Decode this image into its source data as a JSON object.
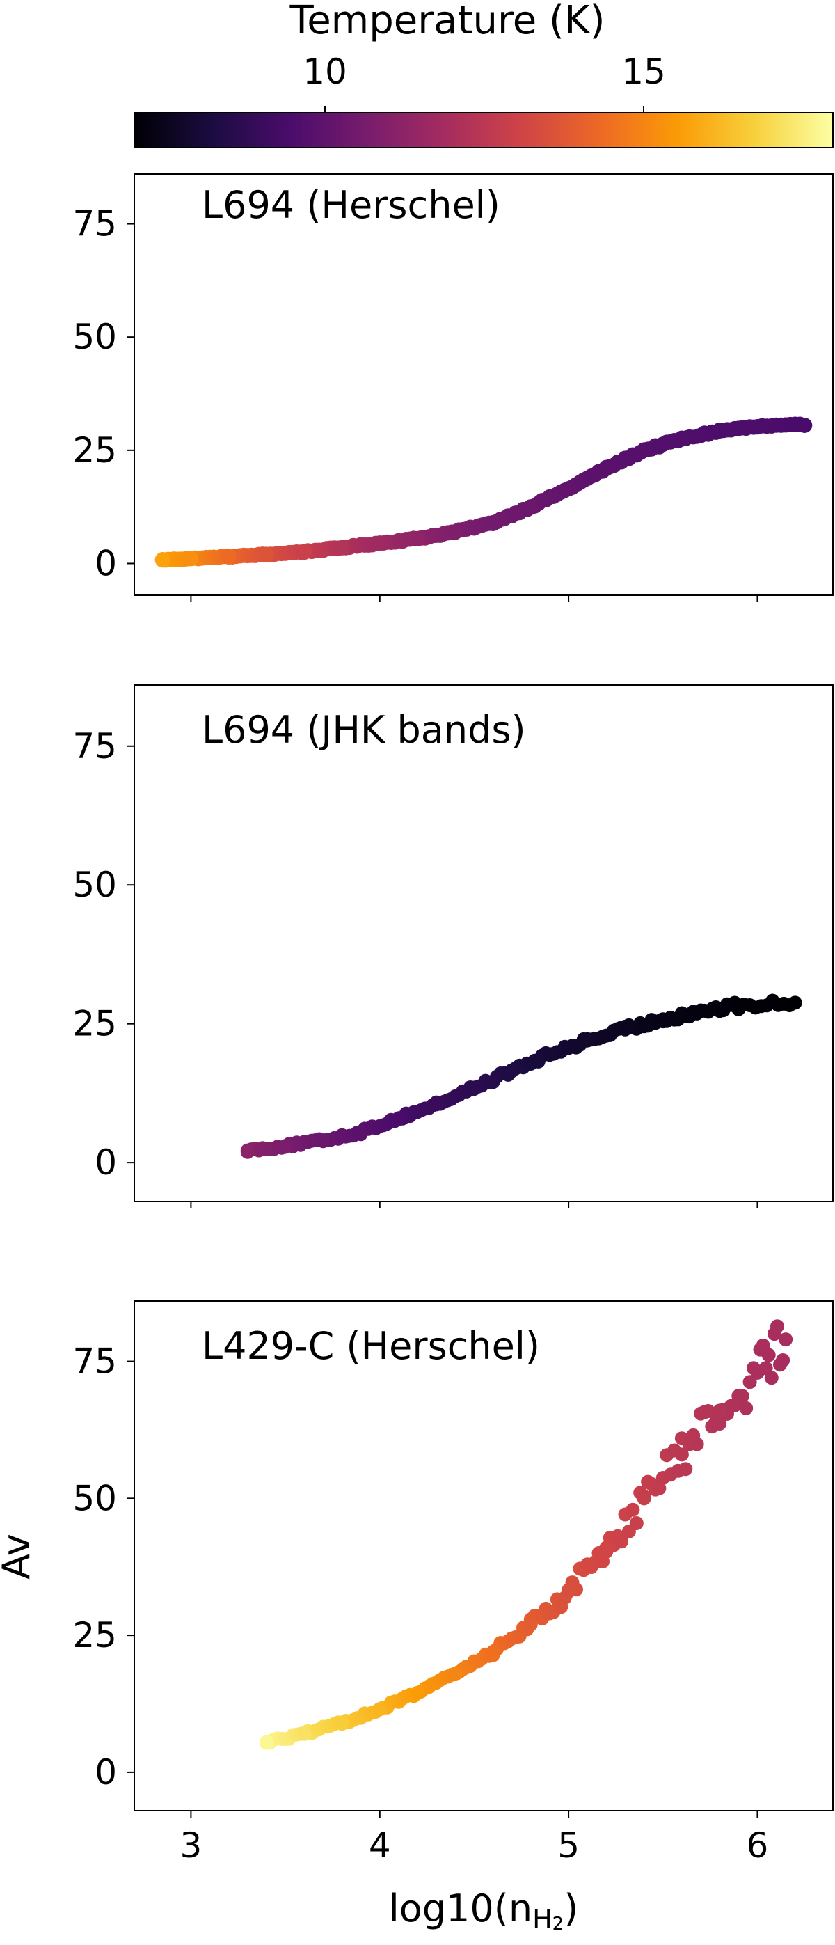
{
  "chart_data": {
    "type": "scatter",
    "colormap": "inferno",
    "colorbar": {
      "label": "Temperature (K)",
      "range": [
        7,
        17
      ],
      "ticks": [
        10,
        15
      ],
      "tick_labels": [
        "10",
        "15"
      ],
      "placement": "top",
      "stops": [
        "#000004",
        "#1b0c41",
        "#4a0c6b",
        "#781c6d",
        "#a52c60",
        "#cf4446",
        "#ed6925",
        "#fb9b06",
        "#f7d13d",
        "#fcffa4"
      ]
    },
    "x_axis": {
      "label": "log10(n",
      "label_subscript": "H",
      "label_subsubscript": "2",
      "label_close": ")",
      "range": [
        2.7,
        6.4
      ],
      "ticks": [
        3,
        4,
        5,
        6
      ],
      "tick_labels": [
        "3",
        "4",
        "5",
        "6"
      ],
      "shared": true
    },
    "y_axis": {
      "label": "Av",
      "range": [
        -7,
        86
      ],
      "ticks": [
        0,
        25,
        50,
        75
      ],
      "tick_labels": [
        "0",
        "25",
        "50",
        "75"
      ]
    },
    "panels": [
      {
        "label": "L694 (Herschel)",
        "points": [
          {
            "x": 2.85,
            "y": 0.8,
            "t": 14.9
          },
          {
            "x": 3.0,
            "y": 1.1,
            "t": 14.5
          },
          {
            "x": 3.2,
            "y": 1.5,
            "t": 13.7
          },
          {
            "x": 3.4,
            "y": 2.0,
            "t": 13.0
          },
          {
            "x": 3.6,
            "y": 2.6,
            "t": 12.4
          },
          {
            "x": 3.8,
            "y": 3.5,
            "t": 11.8
          },
          {
            "x": 4.0,
            "y": 4.5,
            "t": 11.3
          },
          {
            "x": 4.2,
            "y": 5.5,
            "t": 10.9
          },
          {
            "x": 4.4,
            "y": 7.0,
            "t": 10.5
          },
          {
            "x": 4.6,
            "y": 9.0,
            "t": 10.2
          },
          {
            "x": 4.8,
            "y": 12.5,
            "t": 10.0
          },
          {
            "x": 5.0,
            "y": 16.5,
            "t": 9.8
          },
          {
            "x": 5.2,
            "y": 21.0,
            "t": 9.6
          },
          {
            "x": 5.4,
            "y": 25.0,
            "t": 9.5
          },
          {
            "x": 5.6,
            "y": 27.5,
            "t": 9.4
          },
          {
            "x": 5.8,
            "y": 29.3,
            "t": 9.3
          },
          {
            "x": 6.0,
            "y": 30.2,
            "t": 9.3
          },
          {
            "x": 6.25,
            "y": 30.5,
            "t": 9.2
          }
        ]
      },
      {
        "label": "L694 (JHK bands)",
        "points": [
          {
            "x": 3.3,
            "y": 2.2,
            "t": 10.8
          },
          {
            "x": 3.5,
            "y": 3.0,
            "t": 10.4
          },
          {
            "x": 3.7,
            "y": 4.0,
            "t": 10.0
          },
          {
            "x": 3.9,
            "y": 5.5,
            "t": 9.6
          },
          {
            "x": 4.1,
            "y": 8.0,
            "t": 9.2
          },
          {
            "x": 4.3,
            "y": 10.5,
            "t": 8.8
          },
          {
            "x": 4.5,
            "y": 13.5,
            "t": 8.5
          },
          {
            "x": 4.7,
            "y": 16.5,
            "t": 8.2
          },
          {
            "x": 4.9,
            "y": 19.5,
            "t": 7.9
          },
          {
            "x": 5.1,
            "y": 22.0,
            "t": 7.7
          },
          {
            "x": 5.3,
            "y": 24.0,
            "t": 7.5
          },
          {
            "x": 5.5,
            "y": 25.8,
            "t": 7.3
          },
          {
            "x": 5.7,
            "y": 27.3,
            "t": 7.2
          },
          {
            "x": 5.9,
            "y": 28.2,
            "t": 7.1
          },
          {
            "x": 6.2,
            "y": 28.8,
            "t": 7.0
          }
        ]
      },
      {
        "label": "L429-C (Herschel)",
        "points": [
          {
            "x": 3.4,
            "y": 5.5,
            "t": 16.8
          },
          {
            "x": 3.6,
            "y": 7.0,
            "t": 16.3
          },
          {
            "x": 3.8,
            "y": 9.0,
            "t": 15.8
          },
          {
            "x": 4.0,
            "y": 11.5,
            "t": 15.3
          },
          {
            "x": 4.2,
            "y": 14.5,
            "t": 14.8
          },
          {
            "x": 4.4,
            "y": 18.0,
            "t": 14.3
          },
          {
            "x": 4.6,
            "y": 22.0,
            "t": 13.8
          },
          {
            "x": 4.8,
            "y": 27.0,
            "t": 13.3
          },
          {
            "x": 5.0,
            "y": 33.0,
            "t": 12.9
          },
          {
            "x": 5.2,
            "y": 41.0,
            "t": 12.6
          },
          {
            "x": 5.4,
            "y": 50.0,
            "t": 12.3
          },
          {
            "x": 5.6,
            "y": 58.0,
            "t": 12.0
          },
          {
            "x": 5.8,
            "y": 66.0,
            "t": 11.8
          },
          {
            "x": 6.0,
            "y": 73.0,
            "t": 11.6
          },
          {
            "x": 6.15,
            "y": 79.0,
            "t": 11.5
          }
        ]
      }
    ]
  }
}
